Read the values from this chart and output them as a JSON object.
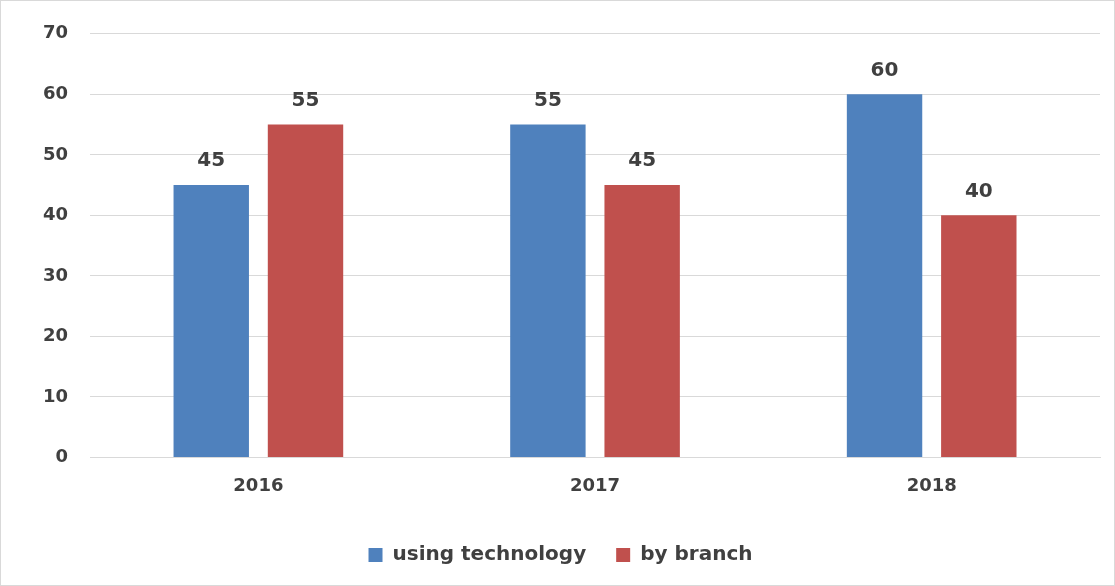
{
  "chart_data": {
    "type": "bar",
    "categories": [
      "2016",
      "2017",
      "2018"
    ],
    "series": [
      {
        "name": "using technology",
        "color": "#4f81bd",
        "values": [
          45,
          55,
          60
        ]
      },
      {
        "name": "by branch",
        "color": "#c0504d",
        "values": [
          55,
          45,
          40
        ]
      }
    ],
    "ylim": [
      0,
      70
    ],
    "yticks": [
      0,
      10,
      20,
      30,
      40,
      50,
      60,
      70
    ],
    "grid": "y",
    "legend": "bottom",
    "data_labels": true
  }
}
